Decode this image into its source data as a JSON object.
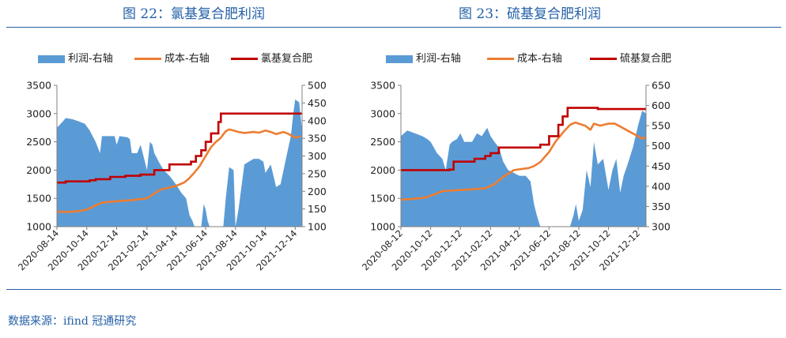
{
  "figures": [
    {
      "title": "图 22：氯基复合肥利润",
      "legend": {
        "profit": "利润-右轴",
        "cost": "成本-右轴",
        "price": "氯基复合肥"
      }
    },
    {
      "title": "图 23：硫基复合肥利润",
      "legend": {
        "profit": "利润-右轴",
        "cost": "成本-右轴",
        "price": "硫基复合肥"
      }
    }
  ],
  "source": "数据来源：ifind  冠通研究",
  "colors": {
    "title": "#2460A7",
    "profit": "#5B9BD5",
    "cost": "#ED7D31",
    "price": "#C00000"
  },
  "chart_data": [
    {
      "type": "line",
      "title": "图 22：氯基复合肥利润",
      "x_ticks": [
        "2020-08-14",
        "2020-10-14",
        "2020-12-14",
        "2021-02-14",
        "2021-04-14",
        "2021-06-14",
        "2021-08-14",
        "2021-10-14",
        "2021-12-14"
      ],
      "left_axis": {
        "min": 1000,
        "max": 3500,
        "ticks": [
          "1000",
          "1500",
          "2000",
          "2500",
          "3000",
          "3500"
        ]
      },
      "right_axis": {
        "min": 100,
        "max": 500,
        "ticks": [
          "100",
          "150",
          "200",
          "250",
          "300",
          "350",
          "400",
          "450",
          "500"
        ]
      },
      "series": [
        {
          "name": "利润-右轴",
          "kind": "area",
          "axis": "left",
          "points": [
            [
              "2020-08-14",
              2750
            ],
            [
              "2020-08-25",
              2850
            ],
            [
              "2020-09-01",
              2920
            ],
            [
              "2020-09-15",
              2900
            ],
            [
              "2020-09-28",
              2860
            ],
            [
              "2020-10-10",
              2820
            ],
            [
              "2020-10-20",
              2700
            ],
            [
              "2020-11-01",
              2500
            ],
            [
              "2020-11-10",
              2300
            ],
            [
              "2020-11-14",
              2600
            ],
            [
              "2020-12-01",
              2600
            ],
            [
              "2020-12-10",
              2600
            ],
            [
              "2020-12-14",
              2450
            ],
            [
              "2020-12-20",
              2600
            ],
            [
              "2021-01-05",
              2580
            ],
            [
              "2021-01-10",
              2550
            ],
            [
              "2021-01-14",
              2300
            ],
            [
              "2021-01-25",
              2300
            ],
            [
              "2021-02-01",
              2450
            ],
            [
              "2021-02-14",
              2000
            ],
            [
              "2021-02-20",
              2500
            ],
            [
              "2021-02-25",
              2450
            ],
            [
              "2021-03-01",
              2300
            ],
            [
              "2021-03-10",
              2150
            ],
            [
              "2021-03-20",
              2000
            ],
            [
              "2021-04-01",
              1900
            ],
            [
              "2021-04-14",
              1750
            ],
            [
              "2021-04-25",
              1600
            ],
            [
              "2021-05-05",
              1500
            ],
            [
              "2021-05-12",
              1200
            ],
            [
              "2021-05-18",
              1100
            ],
            [
              "2021-05-22",
              1000
            ],
            [
              "2021-06-05",
              1000
            ],
            [
              "2021-06-10",
              1400
            ],
            [
              "2021-06-14",
              1300
            ],
            [
              "2021-06-18",
              1100
            ],
            [
              "2021-06-22",
              1000
            ],
            [
              "2021-07-20",
              1000
            ],
            [
              "2021-07-25",
              1500
            ],
            [
              "2021-08-01",
              2050
            ],
            [
              "2021-08-10",
              2000
            ],
            [
              "2021-08-14",
              1000
            ],
            [
              "2021-08-20",
              1300
            ],
            [
              "2021-09-01",
              2100
            ],
            [
              "2021-09-10",
              2150
            ],
            [
              "2021-09-20",
              2200
            ],
            [
              "2021-10-01",
              2200
            ],
            [
              "2021-10-10",
              2150
            ],
            [
              "2021-10-14",
              1950
            ],
            [
              "2021-10-25",
              2100
            ],
            [
              "2021-11-05",
              1700
            ],
            [
              "2021-11-14",
              1750
            ],
            [
              "2021-11-25",
              2200
            ],
            [
              "2021-12-05",
              2600
            ],
            [
              "2021-12-10",
              3000
            ],
            [
              "2021-12-14",
              3250
            ],
            [
              "2021-12-22",
              3200
            ],
            [
              "2021-12-28",
              2700
            ]
          ]
        },
        {
          "name": "成本-右轴",
          "kind": "line",
          "axis": "right",
          "points": [
            [
              "2020-08-14",
              142
            ],
            [
              "2020-09-15",
              142
            ],
            [
              "2020-10-01",
              145
            ],
            [
              "2020-10-14",
              148
            ],
            [
              "2020-11-01",
              160
            ],
            [
              "2020-11-14",
              168
            ],
            [
              "2020-12-14",
              172
            ],
            [
              "2021-01-14",
              175
            ],
            [
              "2021-02-14",
              180
            ],
            [
              "2021-02-25",
              190
            ],
            [
              "2021-03-14",
              205
            ],
            [
              "2021-04-14",
              215
            ],
            [
              "2021-05-01",
              225
            ],
            [
              "2021-05-10",
              235
            ],
            [
              "2021-05-20",
              250
            ],
            [
              "2021-06-01",
              270
            ],
            [
              "2021-06-14",
              300
            ],
            [
              "2021-06-25",
              325
            ],
            [
              "2021-07-05",
              340
            ],
            [
              "2021-07-14",
              350
            ],
            [
              "2021-07-25",
              370
            ],
            [
              "2021-08-01",
              375
            ],
            [
              "2021-08-10",
              372
            ],
            [
              "2021-08-20",
              368
            ],
            [
              "2021-09-01",
              365
            ],
            [
              "2021-09-20",
              368
            ],
            [
              "2021-10-01",
              366
            ],
            [
              "2021-10-14",
              372
            ],
            [
              "2021-10-25",
              368
            ],
            [
              "2021-11-05",
              362
            ],
            [
              "2021-11-20",
              368
            ],
            [
              "2021-12-01",
              362
            ],
            [
              "2021-12-14",
              352
            ],
            [
              "2021-12-25",
              355
            ]
          ]
        },
        {
          "name": "氯基复合肥",
          "kind": "step",
          "axis": "left",
          "points": [
            [
              "2020-08-14",
              1780
            ],
            [
              "2020-09-01",
              1800
            ],
            [
              "2020-10-01",
              1800
            ],
            [
              "2020-10-20",
              1820
            ],
            [
              "2020-11-01",
              1840
            ],
            [
              "2020-12-01",
              1880
            ],
            [
              "2021-01-01",
              1900
            ],
            [
              "2021-02-01",
              1920
            ],
            [
              "2021-03-01",
              2000
            ],
            [
              "2021-04-01",
              2100
            ],
            [
              "2021-04-20",
              2100
            ],
            [
              "2021-05-15",
              2150
            ],
            [
              "2021-05-25",
              2250
            ],
            [
              "2021-06-05",
              2350
            ],
            [
              "2021-06-14",
              2500
            ],
            [
              "2021-06-25",
              2650
            ],
            [
              "2021-07-10",
              2850
            ],
            [
              "2021-07-15",
              3000
            ],
            [
              "2021-07-25",
              3000
            ],
            [
              "2021-08-14",
              3000
            ],
            [
              "2021-12-28",
              3000
            ]
          ]
        }
      ]
    },
    {
      "type": "line",
      "title": "图 23：硫基复合肥利润",
      "x_ticks": [
        "2020-08-12",
        "2020-10-12",
        "2020-12-12",
        "2021-02-12",
        "2021-04-12",
        "2021-06-12",
        "2021-08-12",
        "2021-10-12",
        "2021-12-12"
      ],
      "left_axis": {
        "min": 1000,
        "max": 3500,
        "ticks": [
          "1000",
          "1500",
          "2000",
          "2500",
          "3000",
          "3500"
        ]
      },
      "right_axis": {
        "min": 300,
        "max": 650,
        "ticks": [
          "300",
          "350",
          "400",
          "450",
          "500",
          "550",
          "600",
          "650"
        ]
      },
      "series": [
        {
          "name": "利润-右轴",
          "kind": "area",
          "axis": "left",
          "points": [
            [
              "2020-08-12",
              2600
            ],
            [
              "2020-08-25",
              2700
            ],
            [
              "2020-09-10",
              2650
            ],
            [
              "2020-09-25",
              2600
            ],
            [
              "2020-10-05",
              2550
            ],
            [
              "2020-10-12",
              2500
            ],
            [
              "2020-10-25",
              2300
            ],
            [
              "2020-11-05",
              2200
            ],
            [
              "2020-11-12",
              2000
            ],
            [
              "2020-11-20",
              2450
            ],
            [
              "2020-11-25",
              2500
            ],
            [
              "2020-12-05",
              2550
            ],
            [
              "2020-12-12",
              2650
            ],
            [
              "2020-12-20",
              2500
            ],
            [
              "2021-01-05",
              2500
            ],
            [
              "2021-01-15",
              2650
            ],
            [
              "2021-01-25",
              2600
            ],
            [
              "2021-02-05",
              2750
            ],
            [
              "2021-02-12",
              2600
            ],
            [
              "2021-02-20",
              2500
            ],
            [
              "2021-03-01",
              2400
            ],
            [
              "2021-03-10",
              2150
            ],
            [
              "2021-03-20",
              2000
            ],
            [
              "2021-04-01",
              1950
            ],
            [
              "2021-04-12",
              1900
            ],
            [
              "2021-04-25",
              1900
            ],
            [
              "2021-05-05",
              1800
            ],
            [
              "2021-05-12",
              1400
            ],
            [
              "2021-05-18",
              1200
            ],
            [
              "2021-05-25",
              1000
            ],
            [
              "2021-07-25",
              1000
            ],
            [
              "2021-08-01",
              1200
            ],
            [
              "2021-08-06",
              1400
            ],
            [
              "2021-08-12",
              1100
            ],
            [
              "2021-08-20",
              1300
            ],
            [
              "2021-08-28",
              2000
            ],
            [
              "2021-09-05",
              1700
            ],
            [
              "2021-09-12",
              2500
            ],
            [
              "2021-09-20",
              2100
            ],
            [
              "2021-10-01",
              2200
            ],
            [
              "2021-10-12",
              1650
            ],
            [
              "2021-10-20",
              2000
            ],
            [
              "2021-10-28",
              2200
            ],
            [
              "2021-11-05",
              1600
            ],
            [
              "2021-11-12",
              1900
            ],
            [
              "2021-11-20",
              2100
            ],
            [
              "2021-12-01",
              2400
            ],
            [
              "2021-12-12",
              2800
            ],
            [
              "2021-12-20",
              3050
            ],
            [
              "2021-12-28",
              3000
            ]
          ]
        },
        {
          "name": "成本-右轴",
          "kind": "line",
          "axis": "right",
          "points": [
            [
              "2020-08-12",
              367
            ],
            [
              "2020-09-01",
              368
            ],
            [
              "2020-10-01",
              372
            ],
            [
              "2020-10-20",
              380
            ],
            [
              "2020-11-05",
              388
            ],
            [
              "2020-12-01",
              390
            ],
            [
              "2021-01-01",
              392
            ],
            [
              "2021-02-01",
              395
            ],
            [
              "2021-02-20",
              405
            ],
            [
              "2021-03-01",
              415
            ],
            [
              "2021-03-12",
              425
            ],
            [
              "2021-04-01",
              440
            ],
            [
              "2021-04-12",
              442
            ],
            [
              "2021-05-01",
              445
            ],
            [
              "2021-05-12",
              450
            ],
            [
              "2021-05-25",
              460
            ],
            [
              "2021-06-12",
              485
            ],
            [
              "2021-06-25",
              510
            ],
            [
              "2021-07-12",
              535
            ],
            [
              "2021-07-25",
              552
            ],
            [
              "2021-08-05",
              558
            ],
            [
              "2021-08-12",
              555
            ],
            [
              "2021-08-25",
              550
            ],
            [
              "2021-09-05",
              540
            ],
            [
              "2021-09-12",
              555
            ],
            [
              "2021-09-25",
              550
            ],
            [
              "2021-10-05",
              553
            ],
            [
              "2021-10-12",
              555
            ],
            [
              "2021-10-25",
              555
            ],
            [
              "2021-11-05",
              548
            ],
            [
              "2021-11-20",
              538
            ],
            [
              "2021-12-05",
              528
            ],
            [
              "2021-12-20",
              518
            ],
            [
              "2021-12-28",
              522
            ]
          ]
        },
        {
          "name": "硫基复合肥",
          "kind": "step",
          "axis": "left",
          "points": [
            [
              "2020-08-12",
              2000
            ],
            [
              "2020-10-01",
              2000
            ],
            [
              "2020-11-20",
              2010
            ],
            [
              "2020-11-28",
              2150
            ],
            [
              "2021-01-10",
              2200
            ],
            [
              "2021-02-01",
              2250
            ],
            [
              "2021-02-12",
              2300
            ],
            [
              "2021-03-01",
              2400
            ],
            [
              "2021-05-01",
              2400
            ],
            [
              "2021-05-25",
              2450
            ],
            [
              "2021-06-12",
              2600
            ],
            [
              "2021-07-01",
              2800
            ],
            [
              "2021-07-10",
              2950
            ],
            [
              "2021-07-20",
              3100
            ],
            [
              "2021-09-20",
              3080
            ],
            [
              "2021-12-28",
              3080
            ]
          ]
        }
      ]
    }
  ]
}
